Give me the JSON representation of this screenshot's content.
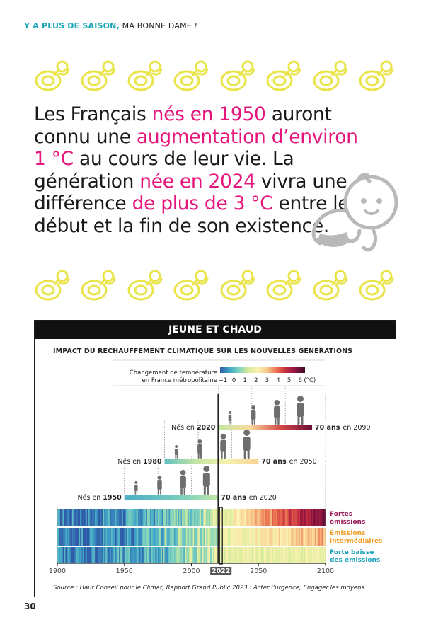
{
  "header": {
    "part1": "Y A PLUS DE SAISON,",
    "part2": "MA BONNE DAME !"
  },
  "icons": {
    "pacifier": "pacifier-icon",
    "baby": "crawling-baby-icon"
  },
  "colors": {
    "accent_pink": "#e6157c",
    "accent_teal": "#1aa6b5",
    "pacifier_yellow": "#e9e44a",
    "high_emissions": "#9b1b5a",
    "mid_emissions": "#f0a028",
    "low_emissions": "#1aa0b8"
  },
  "headline": {
    "s1": "Les Français ",
    "h1": "nés en 1950",
    "s2": " auront connu une ",
    "h2": "augmentation d’environ 1 °C",
    "s3": " au cours de leur vie. La génération ",
    "h3": "née en 2024",
    "s4": " vivra une différence ",
    "h4": "de plus de 3 °C",
    "s5": " entre le début et la fin de son existence."
  },
  "panel": {
    "title": "JEUNE ET CHAUD",
    "chart_title": "IMPACT DU RÉCHAUFFEMENT CLIMATIQUE SUR LES NOUVELLES GÉNÉRATIONS",
    "source": "Source : Haut Conseil pour le Climat, Rapport Grand Public 2023 : Acter l’urgence, Engager les moyens."
  },
  "page_number": "30",
  "chart_data": {
    "type": "heatmap",
    "title": "IMPACT DU RÉCHAUFFEMENT CLIMATIQUE SUR LES NOUVELLES GÉNÉRATIONS",
    "colorbar": {
      "label_line1": "Changement de température",
      "label_line2": "en France métropolitaine",
      "ticks": [
        "−1",
        "0",
        "1",
        "2",
        "3",
        "4",
        "5",
        "6"
      ],
      "unit": "(°C)",
      "range": [
        -1,
        6.5
      ],
      "stops": [
        "#2f5aa8",
        "#3fa6c8",
        "#7fd2be",
        "#d8ec9a",
        "#fbf2b3",
        "#f8c98a",
        "#ea6f4e",
        "#c42d3f",
        "#8a1340",
        "#3d0a2a"
      ]
    },
    "x_axis": {
      "range": [
        1900,
        2100
      ],
      "ticks": [
        1900,
        1950,
        2000,
        2050,
        2100
      ],
      "highlight": 2022
    },
    "generations": [
      {
        "born_label": "Nés en ",
        "born_year": "1950",
        "start": 1950,
        "end": 2020,
        "end_bold": "70 ans",
        "end_rest": "en 2020",
        "temps": [
          0.0,
          0.3,
          0.7,
          1.3
        ]
      },
      {
        "born_label": "Nés en ",
        "born_year": "1980",
        "start": 1980,
        "end": 2050,
        "end_bold": "70 ans",
        "end_rest": "en 2050",
        "temps": [
          0.3,
          1.3,
          2.2,
          3.0
        ]
      },
      {
        "born_label": "Nés en ",
        "born_year": "2020",
        "start": 2020,
        "end": 2090,
        "end_bold": "70 ans",
        "end_rest": "en 2090",
        "temps": [
          1.3,
          2.8,
          4.5,
          6.0
        ]
      }
    ],
    "scenarios": [
      {
        "name": "Fortes émissions",
        "line1": "Fortes",
        "line2": "émissions",
        "color": "#9b1b5a",
        "end_temp": 6.0
      },
      {
        "name": "Émissions intermédiaires",
        "line1": "Émissions",
        "line2": "intermédiaires",
        "color": "#f0a028",
        "end_temp": 3.5
      },
      {
        "name": "Forte baisse des émissions",
        "line1": "Forte baisse",
        "line2": "des émissions",
        "color": "#1aa0b8",
        "end_temp": 2.0
      }
    ]
  }
}
